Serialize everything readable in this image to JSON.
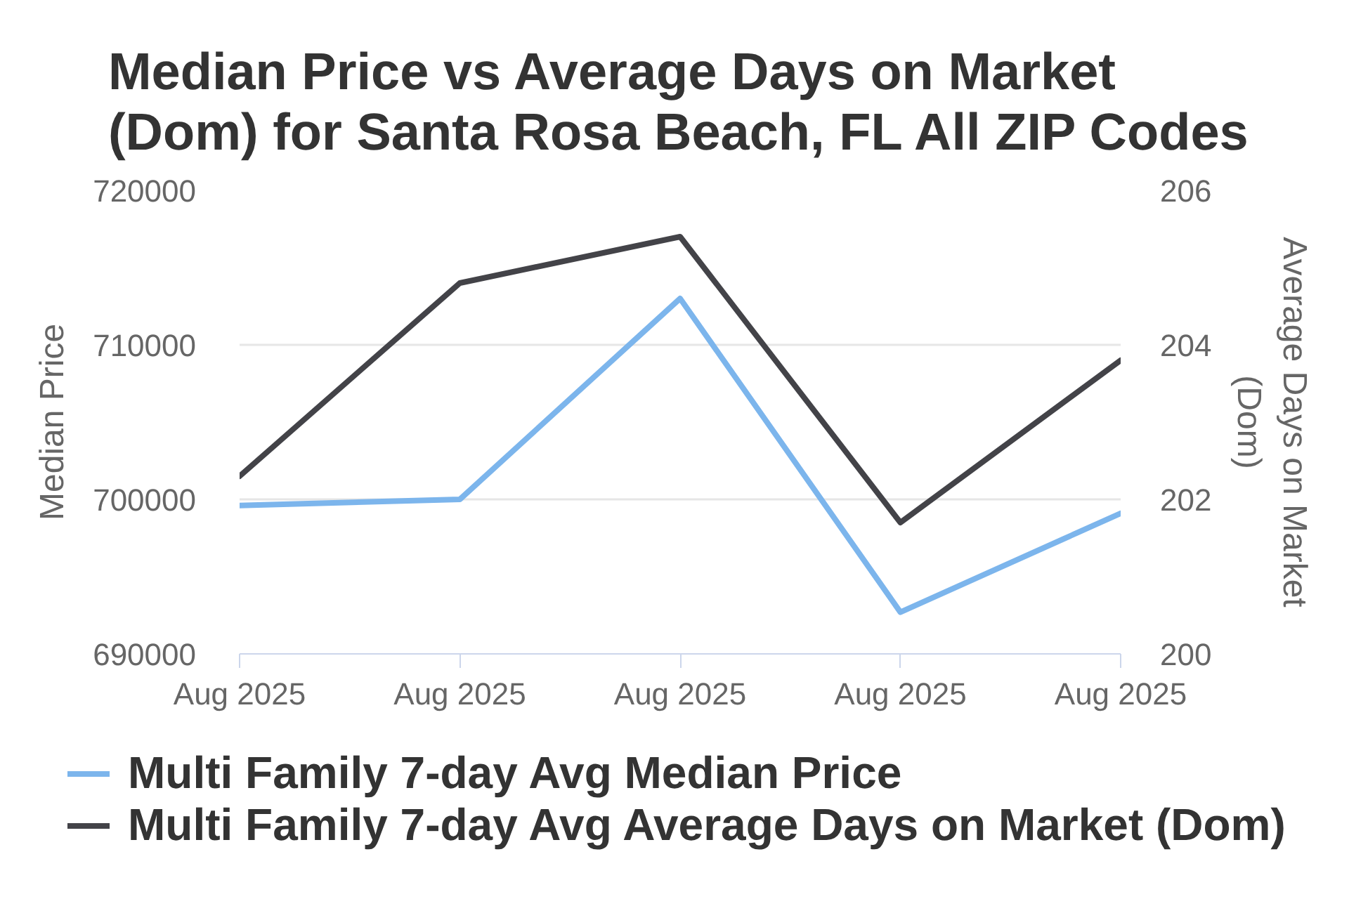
{
  "chart_data": {
    "type": "line",
    "title": "Median Price vs Average Days on Market (Dom) for Santa Rosa Beach, FL All ZIP Codes",
    "ylabel": "Median Price",
    "y2label": "Average Days on Market (Dom)",
    "categories": [
      "Aug 2025",
      "Aug 2025",
      "Aug 2025",
      "Aug 2025",
      "Aug 2025"
    ],
    "series": [
      {
        "name": "Multi Family 7-day Avg Median Price",
        "color": "#7cb5ec",
        "values": [
          699600,
          700000,
          713000,
          692700,
          699100
        ]
      },
      {
        "name": "Multi Family 7-day Avg Average Days on Market (Dom)",
        "color": "#434348",
        "axis": "y2",
        "values": [
          202.3,
          204.8,
          205.4,
          201.7,
          203.8
        ]
      }
    ],
    "ylim": [
      690000,
      720000
    ],
    "yticks": [
      690000,
      700000,
      710000,
      720000
    ],
    "y2lim": [
      200,
      206
    ],
    "y2ticks": [
      200,
      202,
      204,
      206
    ],
    "grid": "y",
    "legend": "bottom"
  }
}
